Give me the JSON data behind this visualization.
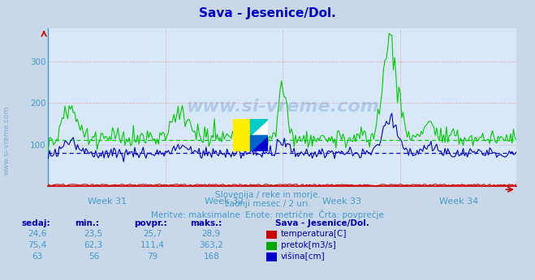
{
  "title": "Sava - Jesenice/Dol.",
  "title_color": "#0000cc",
  "bg_color": "#c8d8e8",
  "plot_bg_color": "#d8e8f8",
  "grid_color_h": "#cc8888",
  "grid_color_v": "#cc8888",
  "xlabel_color": "#4499cc",
  "ylabel_color": "#4499cc",
  "week_labels": [
    "Week 31",
    "Week 32",
    "Week 33",
    "Week 34"
  ],
  "ylim": [
    0,
    380
  ],
  "yticks": [
    100,
    200,
    300
  ],
  "n_points": 336,
  "avg_temperatura": 25.7,
  "avg_pretok": 111.4,
  "avg_visina": 79,
  "color_temp": "#cc0000",
  "color_pretok": "#00cc00",
  "color_visina": "#0000cc",
  "subtitle1": "Slovenija / reke in morje.",
  "subtitle2": "zadnji mesec / 2 uri.",
  "subtitle3": "Meritve: maksimalne  Enote: metrične  Črta: povprečje",
  "table_headers": [
    "sedaj:",
    "min.:",
    "povpr.:",
    "maks.:"
  ],
  "table_data": [
    [
      "24,6",
      "23,5",
      "25,7",
      "28,9"
    ],
    [
      "75,4",
      "62,3",
      "111,4",
      "363,2"
    ],
    [
      "63",
      "56",
      "79",
      "168"
    ]
  ],
  "table_labels": [
    "temperatura[C]",
    "pretok[m3/s]",
    "višina[cm]"
  ],
  "table_colors": [
    "#cc0000",
    "#00aa00",
    "#0000cc"
  ],
  "station_label": "Sava - Jesenice/Dol.",
  "watermark": "www.si-vreme.com",
  "watermark_color": "#5588cc",
  "left_watermark": "www.si-vreme.com"
}
